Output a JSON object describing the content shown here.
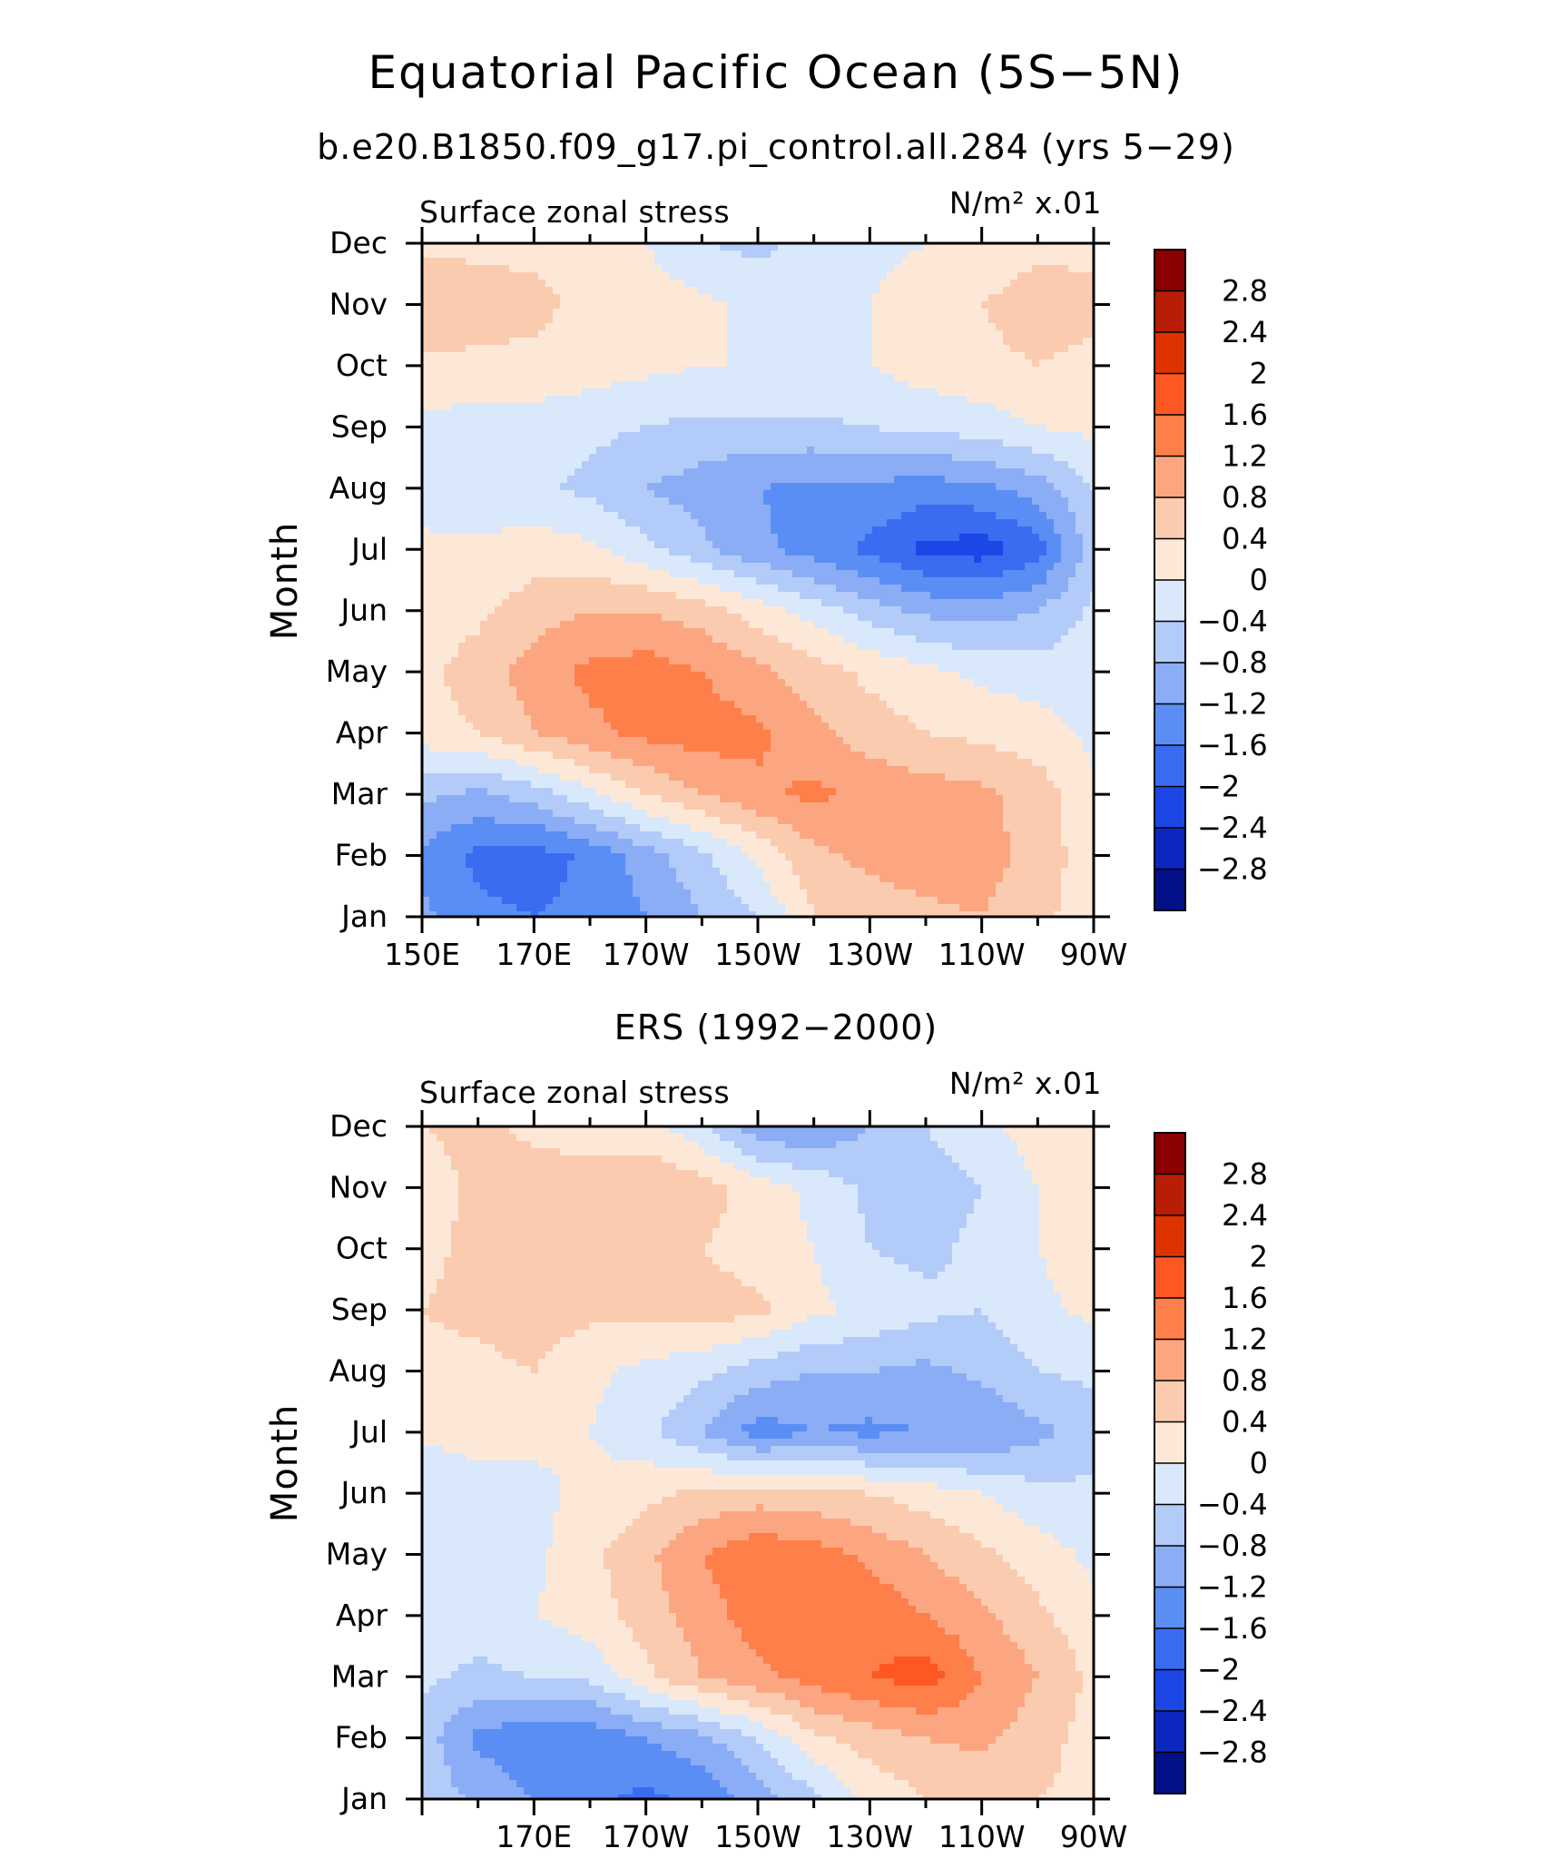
{
  "title": "Equatorial Pacific Ocean (5S−5N)",
  "chart_data": [
    {
      "type": "heatmap",
      "subtitle": "b.e20.B1850.f09_g17.pi_control.all.284 (yrs 5−29)",
      "left_label": "Surface zonal stress",
      "units_label": "N/m² x.01",
      "ylabel": "Month",
      "xlabel": "",
      "x_ticks": [
        "150E",
        "170E",
        "170W",
        "150W",
        "130W",
        "110W",
        "90W"
      ],
      "y_ticks": [
        "Jan",
        "Feb",
        "Mar",
        "Apr",
        "May",
        "Jun",
        "Jul",
        "Aug",
        "Sep",
        "Oct",
        "Nov",
        "Dec"
      ],
      "xlim_deg_east": [
        150,
        270
      ],
      "colorbar_levels": [
        "2.8",
        "2.4",
        "2",
        "1.6",
        "1.2",
        "0.8",
        "0.4",
        "0",
        "−0.4",
        "−0.8",
        "−1.2",
        "−1.6",
        "−2",
        "−2.4",
        "−2.8"
      ],
      "colorbar_colors": [
        "#8b0000",
        "#b81d05",
        "#de3300",
        "#ff5722",
        "#ff7f4a",
        "#fca681",
        "#fbcbb0",
        "#fde8d7",
        "#d9e8fb",
        "#b3cbf8",
        "#8aadf5",
        "#5b8ef4",
        "#3a6cf2",
        "#1c47e6",
        "#0b27bf",
        "#031088"
      ],
      "grid_lon": [
        150,
        160,
        170,
        180,
        190,
        200,
        210,
        220,
        230,
        240,
        250,
        260,
        270
      ],
      "grid_month": [
        "Jan",
        "Feb",
        "Mar",
        "Apr",
        "May",
        "Jun",
        "Jul",
        "Aug",
        "Sep",
        "Oct",
        "Nov",
        "Dec"
      ],
      "values": [
        [
          -1.1,
          -1.5,
          -1.6,
          -1.5,
          -1.2,
          -0.8,
          -0.4,
          0.4,
          0.6,
          0.7,
          0.8,
          0.5,
          0.2
        ],
        [
          -1.3,
          -1.7,
          -1.8,
          -1.5,
          -1.0,
          -0.5,
          0.1,
          0.7,
          0.9,
          1.0,
          1.0,
          0.6,
          0.2
        ],
        [
          -0.7,
          -0.9,
          -0.6,
          -0.1,
          0.4,
          0.8,
          1.1,
          1.3,
          1.1,
          1.0,
          0.9,
          0.6,
          0.1
        ],
        [
          0.2,
          0.4,
          0.8,
          1.1,
          1.3,
          1.4,
          1.3,
          0.9,
          0.6,
          0.4,
          0.3,
          0.2,
          -0.1
        ],
        [
          0.3,
          0.6,
          1.0,
          1.3,
          1.4,
          1.2,
          0.9,
          0.6,
          0.3,
          0.1,
          -0.1,
          -0.2,
          -0.2
        ],
        [
          0.1,
          0.3,
          0.6,
          0.8,
          0.8,
          0.6,
          0.2,
          -0.2,
          -0.6,
          -0.9,
          -1.0,
          -0.8,
          -0.3
        ],
        [
          0.1,
          0.1,
          0.2,
          0.1,
          -0.3,
          -0.7,
          -1.1,
          -1.4,
          -1.7,
          -2.1,
          -2.2,
          -1.8,
          -0.6
        ],
        [
          -0.2,
          -0.3,
          -0.3,
          -0.5,
          -0.8,
          -1.0,
          -1.2,
          -1.3,
          -1.3,
          -1.4,
          -1.3,
          -1.0,
          -0.4
        ],
        [
          -0.1,
          -0.2,
          -0.2,
          -0.3,
          -0.4,
          -0.5,
          -0.5,
          -0.5,
          -0.4,
          -0.3,
          -0.2,
          0.0,
          0.1
        ],
        [
          0.3,
          0.3,
          0.3,
          0.2,
          0.1,
          0.0,
          0.0,
          0.0,
          0.0,
          0.2,
          0.3,
          0.4,
          0.3
        ],
        [
          0.8,
          0.6,
          0.5,
          0.3,
          0.2,
          0.1,
          -0.1,
          -0.2,
          0.0,
          0.2,
          0.4,
          0.6,
          0.5
        ],
        [
          0.3,
          0.3,
          0.3,
          0.2,
          0.0,
          -0.4,
          -0.5,
          -0.3,
          -0.1,
          0.0,
          0.1,
          0.3,
          0.3
        ]
      ]
    },
    {
      "type": "heatmap",
      "subtitle": "ERS (1992−2000)",
      "left_label": "Surface zonal stress",
      "units_label": "N/m² x.01",
      "ylabel": "Month",
      "xlabel": "",
      "x_ticks": [
        "170E",
        "170W",
        "150W",
        "130W",
        "110W",
        "90W"
      ],
      "y_ticks": [
        "Jan",
        "Feb",
        "Mar",
        "Apr",
        "May",
        "Jun",
        "Jul",
        "Aug",
        "Sep",
        "Oct",
        "Nov",
        "Dec"
      ],
      "xlim_deg_east": [
        150,
        270
      ],
      "colorbar_levels": [
        "2.8",
        "2.4",
        "2",
        "1.6",
        "1.2",
        "0.8",
        "0.4",
        "0",
        "−0.4",
        "−0.8",
        "−1.2",
        "−1.6",
        "−2",
        "−2.4",
        "−2.8"
      ],
      "colorbar_colors": [
        "#8b0000",
        "#b81d05",
        "#de3300",
        "#ff5722",
        "#ff7f4a",
        "#fca681",
        "#fbcbb0",
        "#fde8d7",
        "#d9e8fb",
        "#b3cbf8",
        "#8aadf5",
        "#5b8ef4",
        "#3a6cf2",
        "#1c47e6",
        "#0b27bf",
        "#031088"
      ],
      "grid_lon": [
        150,
        160,
        170,
        180,
        190,
        200,
        210,
        220,
        230,
        240,
        250,
        260,
        270
      ],
      "grid_month": [
        "Jan",
        "Feb",
        "Mar",
        "Apr",
        "May",
        "Jun",
        "Jul",
        "Aug",
        "Sep",
        "Oct",
        "Nov",
        "Dec"
      ],
      "values": [
        [
          -0.5,
          -0.9,
          -1.2,
          -1.5,
          -1.7,
          -1.5,
          -1.0,
          -0.5,
          0.1,
          0.4,
          0.5,
          0.4,
          0.3
        ],
        [
          -0.6,
          -1.3,
          -1.5,
          -1.5,
          -1.2,
          -0.9,
          -0.4,
          0.3,
          0.6,
          0.8,
          0.9,
          0.6,
          0.2
        ],
        [
          -0.3,
          -0.5,
          -0.4,
          -0.3,
          0.3,
          0.8,
          1.1,
          1.4,
          1.6,
          1.8,
          1.2,
          0.8,
          0.3
        ],
        [
          -0.1,
          -0.2,
          0.0,
          0.2,
          0.6,
          1.0,
          1.4,
          1.6,
          1.5,
          1.2,
          0.9,
          0.5,
          0.1
        ],
        [
          -0.1,
          -0.3,
          -0.1,
          0.3,
          0.7,
          1.2,
          1.5,
          1.4,
          1.1,
          0.8,
          0.5,
          0.2,
          -0.1
        ],
        [
          -0.4,
          -0.2,
          -0.1,
          0.1,
          0.3,
          0.5,
          0.6,
          0.5,
          0.4,
          0.2,
          0.0,
          -0.3,
          -0.3
        ],
        [
          0.1,
          0.2,
          0.1,
          0.0,
          -0.3,
          -0.8,
          -1.4,
          -1.2,
          -1.3,
          -1.2,
          -1.2,
          -0.9,
          -0.6
        ],
        [
          0.3,
          0.3,
          0.4,
          0.1,
          -0.1,
          -0.3,
          -0.6,
          -0.8,
          -0.8,
          -0.9,
          -0.7,
          -0.4,
          -0.3
        ],
        [
          0.4,
          0.5,
          0.6,
          0.5,
          0.5,
          0.6,
          0.5,
          0.1,
          -0.1,
          -0.3,
          -0.4,
          -0.1,
          0.1
        ],
        [
          0.3,
          0.5,
          0.5,
          0.6,
          0.5,
          0.4,
          0.2,
          0.0,
          -0.4,
          -0.5,
          -0.3,
          0.0,
          0.2
        ],
        [
          0.2,
          0.5,
          0.6,
          0.6,
          0.8,
          0.6,
          0.2,
          -0.1,
          -0.5,
          -0.6,
          -0.4,
          0.0,
          0.3
        ],
        [
          0.4,
          0.5,
          0.3,
          0.2,
          0.1,
          -0.3,
          -1.1,
          -1.2,
          -0.8,
          -0.4,
          -0.1,
          0.2,
          0.3
        ]
      ]
    }
  ]
}
